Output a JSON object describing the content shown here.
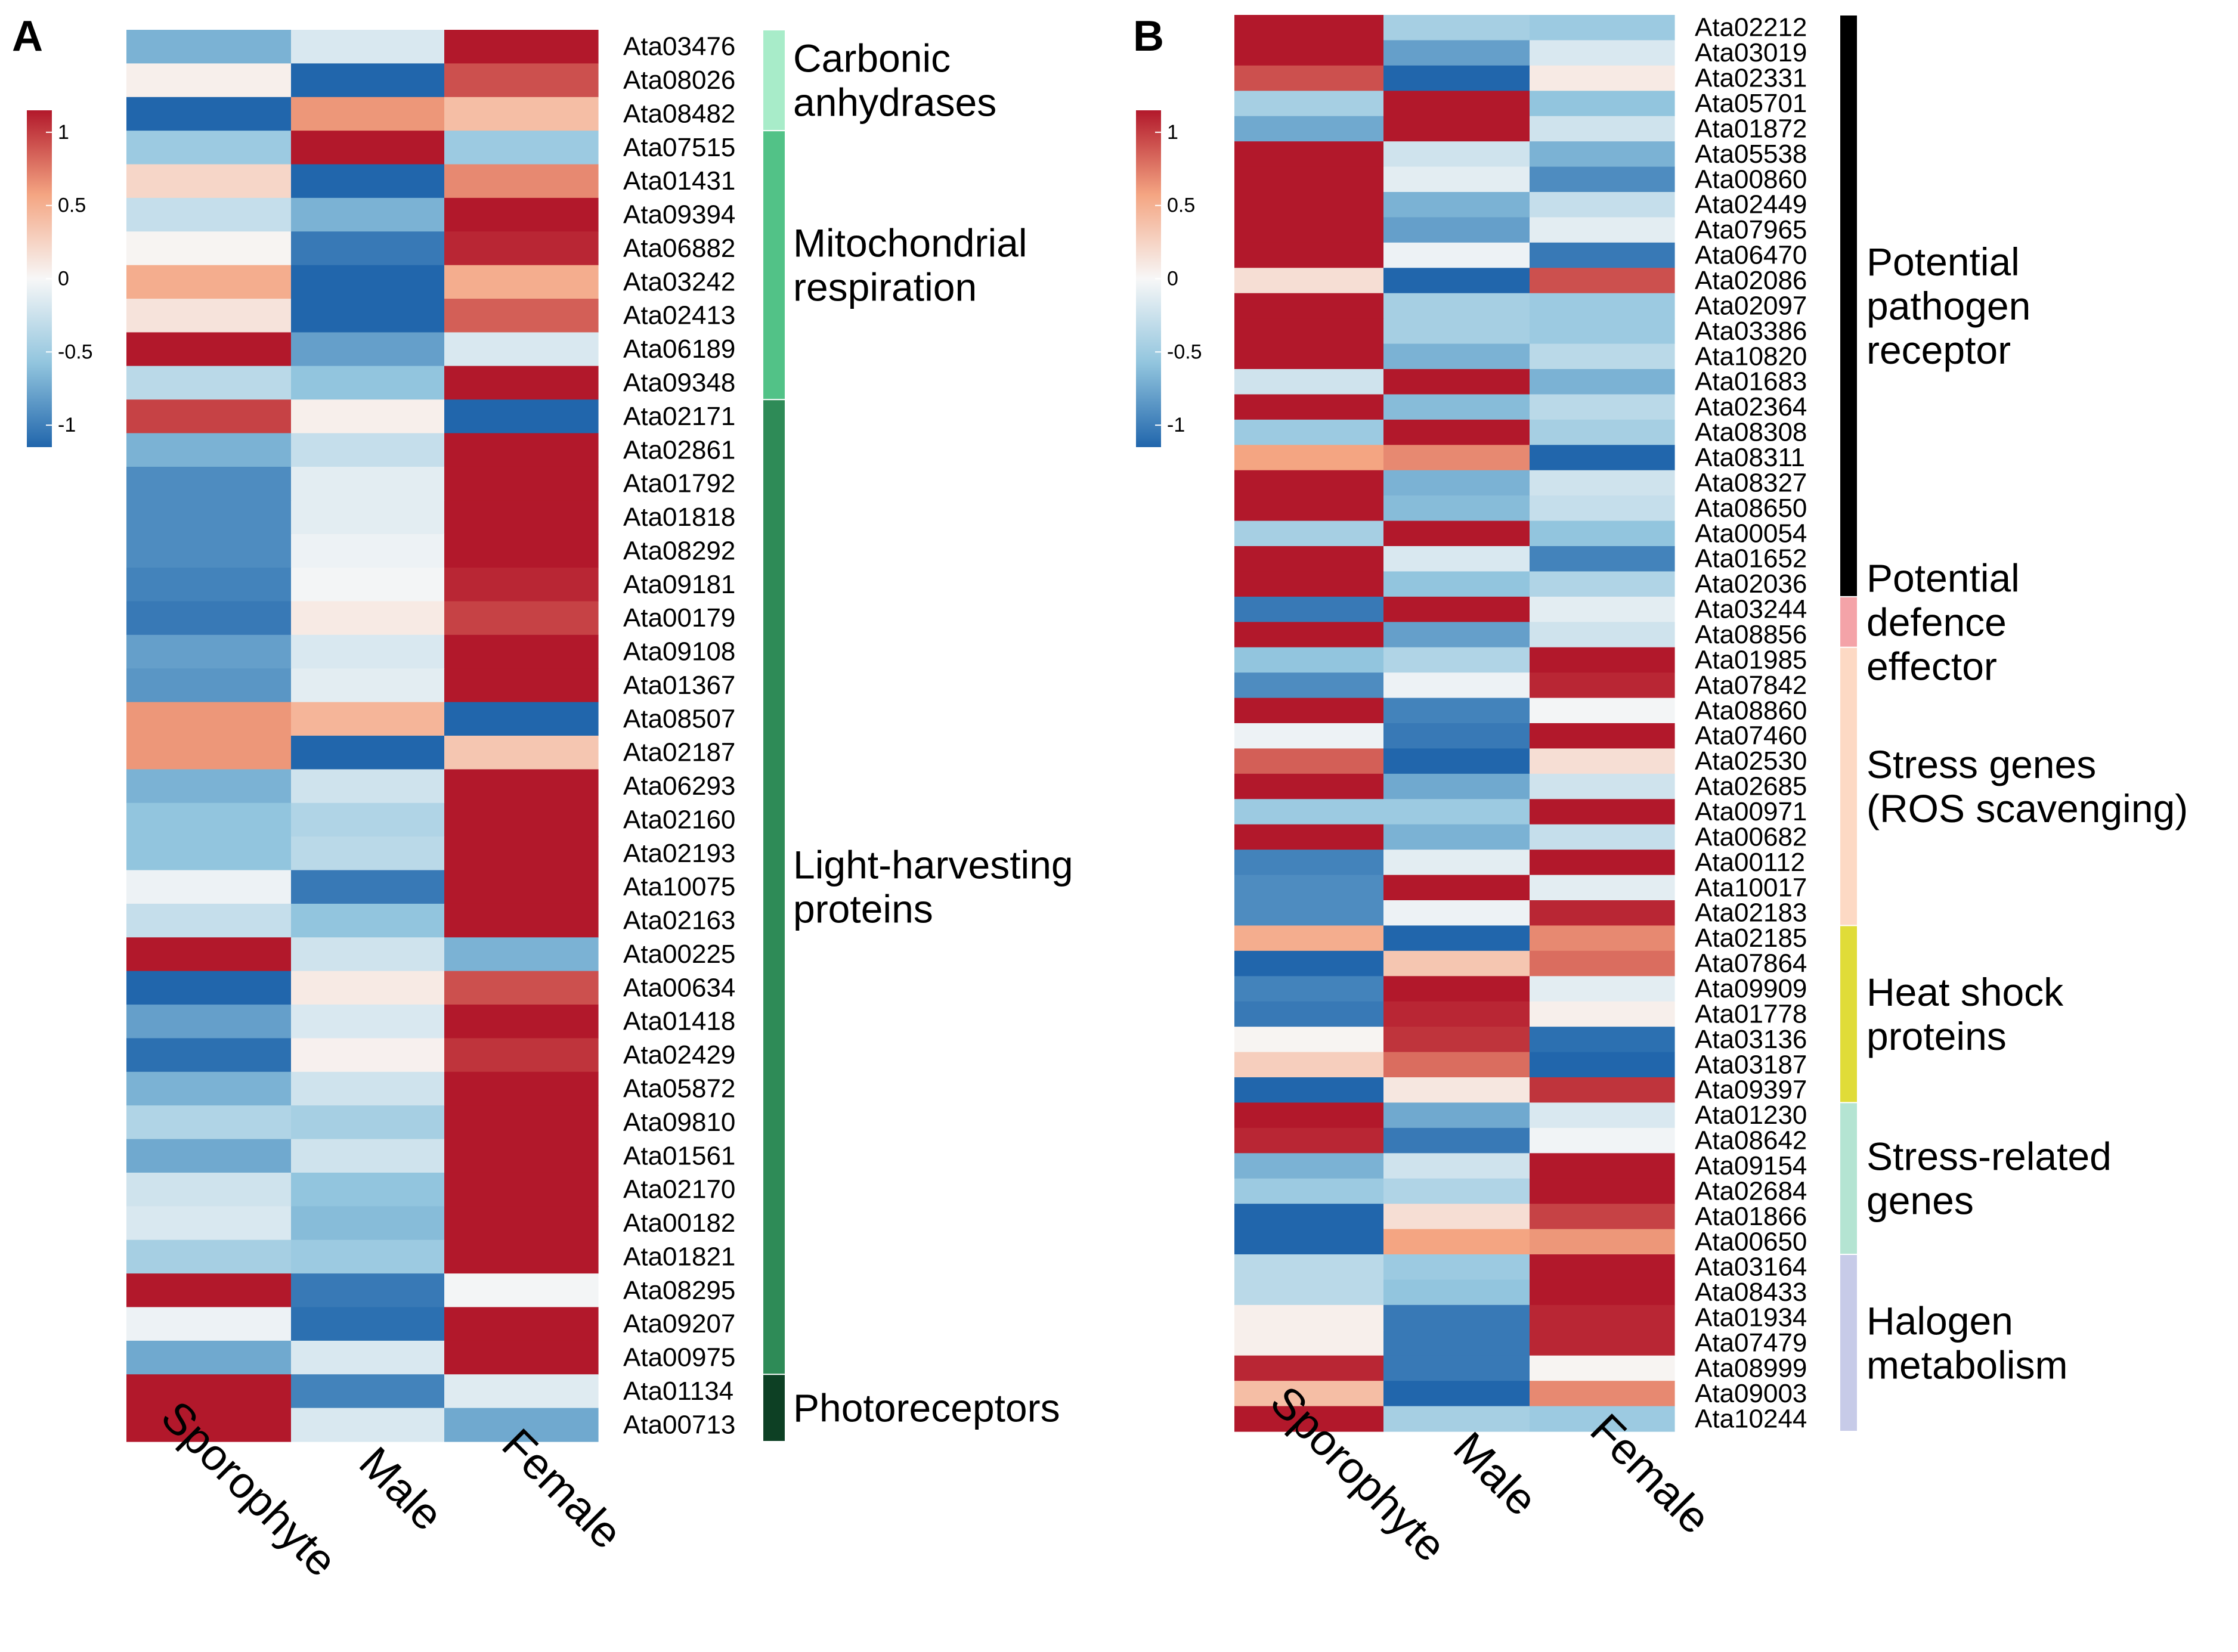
{
  "colors": {
    "low": "#2166ac",
    "low_mid": "#92c5de",
    "mid": "#f7f7f7",
    "high_mid": "#f4a582",
    "high": "#b2182b"
  },
  "chart_data": [
    {
      "type": "heatmap",
      "panel": "A",
      "columns": [
        "Sporophyte",
        "Male",
        "Female"
      ],
      "colorbar": {
        "range": [
          -1.15,
          1.15
        ],
        "ticks": [
          1,
          0.5,
          0,
          -0.5,
          -1
        ],
        "tick_labels": [
          "1",
          "0.5",
          "0",
          "-0.5",
          "-1"
        ]
      },
      "rows": [
        {
          "gene": "Ata03476",
          "values": [
            -0.6,
            -0.15,
            1.1
          ]
        },
        {
          "gene": "Ata08026",
          "values": [
            0.05,
            -1.0,
            0.8
          ]
        },
        {
          "gene": "Ata08482",
          "values": [
            -1.05,
            0.55,
            0.35
          ]
        },
        {
          "gene": "Ata07515",
          "values": [
            -0.45,
            1.1,
            -0.45
          ]
        },
        {
          "gene": "Ata01431",
          "values": [
            0.2,
            -1.05,
            0.6
          ]
        },
        {
          "gene": "Ata09394",
          "values": [
            -0.25,
            -0.6,
            1.1
          ]
        },
        {
          "gene": "Ata06882",
          "values": [
            0.02,
            -0.9,
            0.95
          ]
        },
        {
          "gene": "Ata03242",
          "values": [
            0.45,
            -1.05,
            0.45
          ]
        },
        {
          "gene": "Ata02413",
          "values": [
            0.12,
            -1.0,
            0.75
          ]
        },
        {
          "gene": "Ata06189",
          "values": [
            1.1,
            -0.7,
            -0.15
          ]
        },
        {
          "gene": "Ata09348",
          "values": [
            -0.3,
            -0.5,
            1.1
          ]
        },
        {
          "gene": "Ata02171",
          "values": [
            0.85,
            0.05,
            -1.0
          ]
        },
        {
          "gene": "Ata02861",
          "values": [
            -0.6,
            -0.25,
            1.1
          ]
        },
        {
          "gene": "Ata01792",
          "values": [
            -0.8,
            -0.1,
            1.0
          ]
        },
        {
          "gene": "Ata01818",
          "values": [
            -0.8,
            -0.1,
            1.0
          ]
        },
        {
          "gene": "Ata08292",
          "values": [
            -0.8,
            -0.05,
            1.0
          ]
        },
        {
          "gene": "Ata09181",
          "values": [
            -0.85,
            -0.02,
            0.95
          ]
        },
        {
          "gene": "Ata00179",
          "values": [
            -0.9,
            0.08,
            0.85
          ]
        },
        {
          "gene": "Ata09108",
          "values": [
            -0.7,
            -0.15,
            1.0
          ]
        },
        {
          "gene": "Ata01367",
          "values": [
            -0.75,
            -0.1,
            1.0
          ]
        },
        {
          "gene": "Ata08507",
          "values": [
            0.55,
            0.4,
            -1.05
          ]
        },
        {
          "gene": "Ata02187",
          "values": [
            0.55,
            -1.05,
            0.3
          ]
        },
        {
          "gene": "Ata06293",
          "values": [
            -0.6,
            -0.2,
            1.1
          ]
        },
        {
          "gene": "Ata02160",
          "values": [
            -0.5,
            -0.35,
            1.1
          ]
        },
        {
          "gene": "Ata02193",
          "values": [
            -0.5,
            -0.3,
            1.1
          ]
        },
        {
          "gene": "Ata10075",
          "values": [
            -0.05,
            -0.9,
            1.0
          ]
        },
        {
          "gene": "Ata02163",
          "values": [
            -0.25,
            -0.5,
            1.1
          ]
        },
        {
          "gene": "Ata00225",
          "values": [
            1.1,
            -0.2,
            -0.6
          ]
        },
        {
          "gene": "Ata00634",
          "values": [
            -1.0,
            0.08,
            0.8
          ]
        },
        {
          "gene": "Ata01418",
          "values": [
            -0.7,
            -0.15,
            1.0
          ]
        },
        {
          "gene": "Ata02429",
          "values": [
            -0.95,
            0.04,
            0.9
          ]
        },
        {
          "gene": "Ata05872",
          "values": [
            -0.6,
            -0.2,
            1.05
          ]
        },
        {
          "gene": "Ata09810",
          "values": [
            -0.35,
            -0.4,
            1.1
          ]
        },
        {
          "gene": "Ata01561",
          "values": [
            -0.65,
            -0.2,
            1.05
          ]
        },
        {
          "gene": "Ata02170",
          "values": [
            -0.2,
            -0.5,
            1.1
          ]
        },
        {
          "gene": "Ata00182",
          "values": [
            -0.15,
            -0.55,
            1.1
          ]
        },
        {
          "gene": "Ata01821",
          "values": [
            -0.4,
            -0.45,
            1.1
          ]
        },
        {
          "gene": "Ata08295",
          "values": [
            1.0,
            -0.9,
            -0.02
          ]
        },
        {
          "gene": "Ata09207",
          "values": [
            -0.05,
            -0.95,
            1.0
          ]
        },
        {
          "gene": "Ata00975",
          "values": [
            -0.65,
            -0.15,
            1.05
          ]
        },
        {
          "gene": "Ata01134",
          "values": [
            1.0,
            -0.85,
            -0.12
          ]
        },
        {
          "gene": "Ata00713",
          "values": [
            1.1,
            -0.15,
            -0.65
          ]
        }
      ],
      "groups": [
        {
          "label_lines": [
            "Carbonic",
            "anhydrases"
          ],
          "start": 0,
          "end": 2,
          "color": "#a8ecc9"
        },
        {
          "label_lines": [
            "Mitochondrial",
            "respiration"
          ],
          "start": 3,
          "end": 10,
          "color": "#52c287"
        },
        {
          "label_lines": [
            "Light-harvesting",
            "proteins"
          ],
          "start": 11,
          "end": 39,
          "color": "#2e8b57"
        },
        {
          "label_lines": [
            "Photoreceptors"
          ],
          "start": 40,
          "end": 41,
          "color": "#0d4024"
        }
      ]
    },
    {
      "type": "heatmap",
      "panel": "B",
      "columns": [
        "Sporophyte",
        "Male",
        "Female"
      ],
      "colorbar": {
        "range": [
          -1.15,
          1.15
        ],
        "ticks": [
          1,
          0.5,
          0,
          -0.5,
          -1
        ],
        "tick_labels": [
          "1",
          "0.5",
          "0",
          "-0.5",
          "-1"
        ]
      },
      "rows": [
        {
          "gene": "Ata02212",
          "values": [
            1.1,
            -0.4,
            -0.45
          ]
        },
        {
          "gene": "Ata03019",
          "values": [
            1.05,
            -0.7,
            -0.15
          ]
        },
        {
          "gene": "Ata02331",
          "values": [
            0.8,
            -1.0,
            0.08
          ]
        },
        {
          "gene": "Ata05701",
          "values": [
            -0.4,
            1.1,
            -0.5
          ]
        },
        {
          "gene": "Ata01872",
          "values": [
            -0.65,
            1.05,
            -0.2
          ]
        },
        {
          "gene": "Ata05538",
          "values": [
            1.1,
            -0.2,
            -0.6
          ]
        },
        {
          "gene": "Ata00860",
          "values": [
            1.05,
            -0.1,
            -0.8
          ]
        },
        {
          "gene": "Ata02449",
          "values": [
            1.0,
            -0.6,
            -0.25
          ]
        },
        {
          "gene": "Ata07965",
          "values": [
            1.05,
            -0.7,
            -0.1
          ]
        },
        {
          "gene": "Ata06470",
          "values": [
            1.0,
            -0.05,
            -0.9
          ]
        },
        {
          "gene": "Ata02086",
          "values": [
            0.15,
            -1.0,
            0.8
          ]
        },
        {
          "gene": "Ata02097",
          "values": [
            1.1,
            -0.4,
            -0.45
          ]
        },
        {
          "gene": "Ata03386",
          "values": [
            1.1,
            -0.4,
            -0.45
          ]
        },
        {
          "gene": "Ata10820",
          "values": [
            1.1,
            -0.6,
            -0.3
          ]
        },
        {
          "gene": "Ata01683",
          "values": [
            -0.2,
            1.1,
            -0.6
          ]
        },
        {
          "gene": "Ata02364",
          "values": [
            1.1,
            -0.55,
            -0.3
          ]
        },
        {
          "gene": "Ata08308",
          "values": [
            -0.45,
            1.1,
            -0.4
          ]
        },
        {
          "gene": "Ata08311",
          "values": [
            0.5,
            0.6,
            -1.05
          ]
        },
        {
          "gene": "Ata08327",
          "values": [
            1.1,
            -0.6,
            -0.2
          ]
        },
        {
          "gene": "Ata08650",
          "values": [
            1.1,
            -0.55,
            -0.25
          ]
        },
        {
          "gene": "Ata00054",
          "values": [
            -0.4,
            1.1,
            -0.5
          ]
        },
        {
          "gene": "Ata01652",
          "values": [
            1.0,
            -0.15,
            -0.85
          ]
        },
        {
          "gene": "Ata02036",
          "values": [
            1.1,
            -0.5,
            -0.35
          ]
        },
        {
          "gene": "Ata03244",
          "values": [
            -0.9,
            1.0,
            -0.1
          ]
        },
        {
          "gene": "Ata08856",
          "values": [
            1.05,
            -0.7,
            -0.2
          ]
        },
        {
          "gene": "Ata01985",
          "values": [
            -0.5,
            -0.35,
            1.1
          ]
        },
        {
          "gene": "Ata07842",
          "values": [
            -0.8,
            -0.05,
            0.95
          ]
        },
        {
          "gene": "Ata08860",
          "values": [
            1.0,
            -0.85,
            -0.02
          ]
        },
        {
          "gene": "Ata07460",
          "values": [
            -0.05,
            -0.9,
            1.0
          ]
        },
        {
          "gene": "Ata02530",
          "values": [
            0.75,
            -1.0,
            0.15
          ]
        },
        {
          "gene": "Ata02685",
          "values": [
            1.1,
            -0.65,
            -0.2
          ]
        },
        {
          "gene": "Ata00971",
          "values": [
            -0.45,
            -0.45,
            1.1
          ]
        },
        {
          "gene": "Ata00682",
          "values": [
            1.1,
            -0.6,
            -0.25
          ]
        },
        {
          "gene": "Ata00112",
          "values": [
            -0.85,
            -0.1,
            1.0
          ]
        },
        {
          "gene": "Ata10017",
          "values": [
            -0.8,
            1.0,
            -0.1
          ]
        },
        {
          "gene": "Ata02183",
          "values": [
            -0.8,
            -0.05,
            0.95
          ]
        },
        {
          "gene": "Ata02185",
          "values": [
            0.45,
            -1.0,
            0.6
          ]
        },
        {
          "gene": "Ata07864",
          "values": [
            -1.0,
            0.3,
            0.7
          ]
        },
        {
          "gene": "Ata09909",
          "values": [
            -0.85,
            1.0,
            -0.1
          ]
        },
        {
          "gene": "Ata01778",
          "values": [
            -0.9,
            0.95,
            0.05
          ]
        },
        {
          "gene": "Ata03136",
          "values": [
            0.02,
            0.9,
            -0.95
          ]
        },
        {
          "gene": "Ata03187",
          "values": [
            0.25,
            0.7,
            -1.0
          ]
        },
        {
          "gene": "Ata09397",
          "values": [
            -1.0,
            0.1,
            0.9
          ]
        },
        {
          "gene": "Ata01230",
          "values": [
            1.1,
            -0.65,
            -0.15
          ]
        },
        {
          "gene": "Ata08642",
          "values": [
            0.95,
            -0.9,
            -0.03
          ]
        },
        {
          "gene": "Ata09154",
          "values": [
            -0.6,
            -0.2,
            1.1
          ]
        },
        {
          "gene": "Ata02684",
          "values": [
            -0.45,
            -0.35,
            1.1
          ]
        },
        {
          "gene": "Ata01866",
          "values": [
            -1.0,
            0.15,
            0.85
          ]
        },
        {
          "gene": "Ata00650",
          "values": [
            -1.05,
            0.5,
            0.55
          ]
        },
        {
          "gene": "Ata03164",
          "values": [
            -0.3,
            -0.45,
            1.1
          ]
        },
        {
          "gene": "Ata08433",
          "values": [
            -0.3,
            -0.5,
            1.1
          ]
        },
        {
          "gene": "Ata01934",
          "values": [
            0.05,
            -0.9,
            0.95
          ]
        },
        {
          "gene": "Ata07479",
          "values": [
            0.05,
            -0.9,
            0.95
          ]
        },
        {
          "gene": "Ata08999",
          "values": [
            0.95,
            -0.9,
            0.02
          ]
        },
        {
          "gene": "Ata09003",
          "values": [
            0.35,
            -1.05,
            0.6
          ]
        },
        {
          "gene": "Ata10244",
          "values": [
            1.1,
            -0.4,
            -0.45
          ]
        }
      ],
      "groups": [
        {
          "label_lines": [
            "Potential",
            "pathogen",
            "receptor"
          ],
          "start": 0,
          "end": 22,
          "color": "#000000"
        },
        {
          "label_lines": [
            "Potential",
            "defence",
            "effector"
          ],
          "start": 23,
          "end": 24,
          "color": "#f4a3a8"
        },
        {
          "label_lines": [
            "Stress genes",
            "(ROS scavenging)"
          ],
          "start": 25,
          "end": 35,
          "color": "#fdd9c4"
        },
        {
          "label_lines": [
            "Heat shock",
            "proteins"
          ],
          "start": 36,
          "end": 42,
          "color": "#e0dc38"
        },
        {
          "label_lines": [
            "Stress-related",
            "genes"
          ],
          "start": 43,
          "end": 48,
          "color": "#b4e4d2"
        },
        {
          "label_lines": [
            "Halogen",
            "metabolism"
          ],
          "start": 49,
          "end": 55,
          "color": "#c7cbe8"
        }
      ]
    }
  ]
}
